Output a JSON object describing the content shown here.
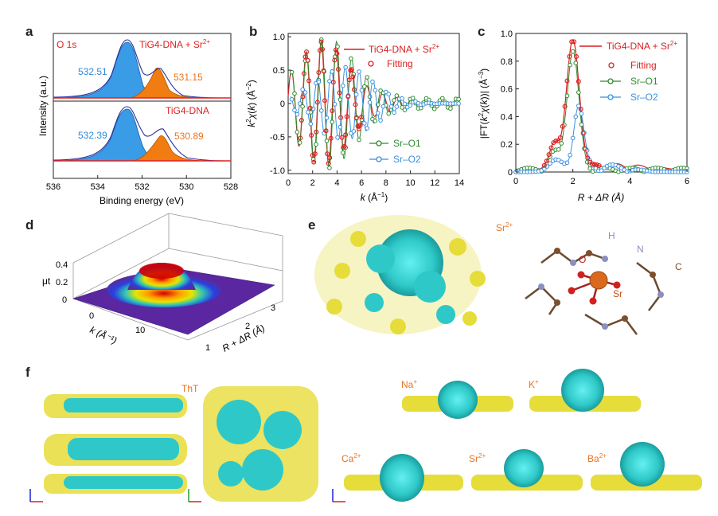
{
  "panels": {
    "a": "a",
    "b": "b",
    "c": "c",
    "d": "d",
    "e": "e",
    "f": "f"
  },
  "panel_a": {
    "corner_label": "O 1s",
    "top_label": "TiG4-DNA + Sr",
    "top_label_sup": "2+",
    "bottom_label": "TiG4-DNA",
    "peaks_top": [
      "532.51",
      "531.15"
    ],
    "peaks_bottom": [
      "532.39",
      "530.89"
    ],
    "xlabel": "Binding energy (eV)",
    "ylabel": "Intensity (a.u.)",
    "xticks": [
      "536",
      "534",
      "532",
      "530",
      "528"
    ],
    "colors": {
      "main": "#3a9be6",
      "minor": "#f07c12",
      "envelope": "#2a2f9b",
      "baseline": "#e02020"
    }
  },
  "chart_data": [
    {
      "type": "line",
      "panel": "b",
      "xlabel_prefix": "k",
      "xlabel_unit": " (Å",
      "xlabel_sup": "−1",
      "xlabel_end": ")",
      "ylabel": "k²χ(k) (Å⁻²)",
      "xlim": [
        0,
        14
      ],
      "ylim": [
        -1.05,
        1.05
      ],
      "xticks": [
        "0",
        "2",
        "4",
        "6",
        "8",
        "10",
        "12",
        "14"
      ],
      "yticks": [
        "-1.0",
        "-0.5",
        "0",
        "0.5",
        "1.0"
      ],
      "legend": [
        "TiG4-DNA + Sr",
        "Fitting",
        "Sr–O1",
        "Sr–O2"
      ],
      "legend_sup": "2+",
      "series_colors": [
        "#d81e1e",
        "#e02020",
        "#2e8b2e",
        "#3a8fe0"
      ]
    },
    {
      "type": "line",
      "panel": "c",
      "xlabel": "R + ΔR (Å)",
      "ylabel": "|FT(k²χ(k))| (Å⁻³)",
      "xlim": [
        0,
        6
      ],
      "ylim": [
        0,
        1.0
      ],
      "xticks": [
        "0",
        "2",
        "4",
        "6"
      ],
      "yticks": [
        "0",
        "0.2",
        "0.4",
        "0.6",
        "0.8",
        "1.0"
      ],
      "legend": [
        "TiG4-DNA + Sr",
        "Fitting",
        "Sr–O1",
        "Sr–O2"
      ],
      "legend_sup": "2+",
      "peak_position": 2.0,
      "peak_heights": {
        "data": 0.92,
        "sr_o1": 0.85,
        "sr_o2": 0.45
      },
      "series_colors": [
        "#d81e1e",
        "#e02020",
        "#2e8b2e",
        "#3a8fe0"
      ]
    },
    {
      "type": "surface",
      "panel": "d",
      "zlabel": "μt",
      "zticks": [
        "0",
        "0.2",
        "0.4"
      ],
      "xlabel": "k (Å⁻¹)",
      "xticks": [
        "0",
        "10"
      ],
      "ylabel": "R + ΔR (Å)",
      "yticks": [
        "1",
        "2",
        "3"
      ]
    }
  ],
  "panel_e": {
    "ion_label": "Sr",
    "ion_sup": "2+",
    "atoms": [
      "H",
      "N",
      "O",
      "C",
      "Sr"
    ]
  },
  "panel_f": {
    "center_label": "ThT",
    "ions": [
      {
        "name": "Na",
        "sup": "+"
      },
      {
        "name": "K",
        "sup": "+"
      },
      {
        "name": "Ca",
        "sup": "2+"
      },
      {
        "name": "Sr",
        "sup": "2+"
      },
      {
        "name": "Ba",
        "sup": "2+"
      }
    ]
  }
}
